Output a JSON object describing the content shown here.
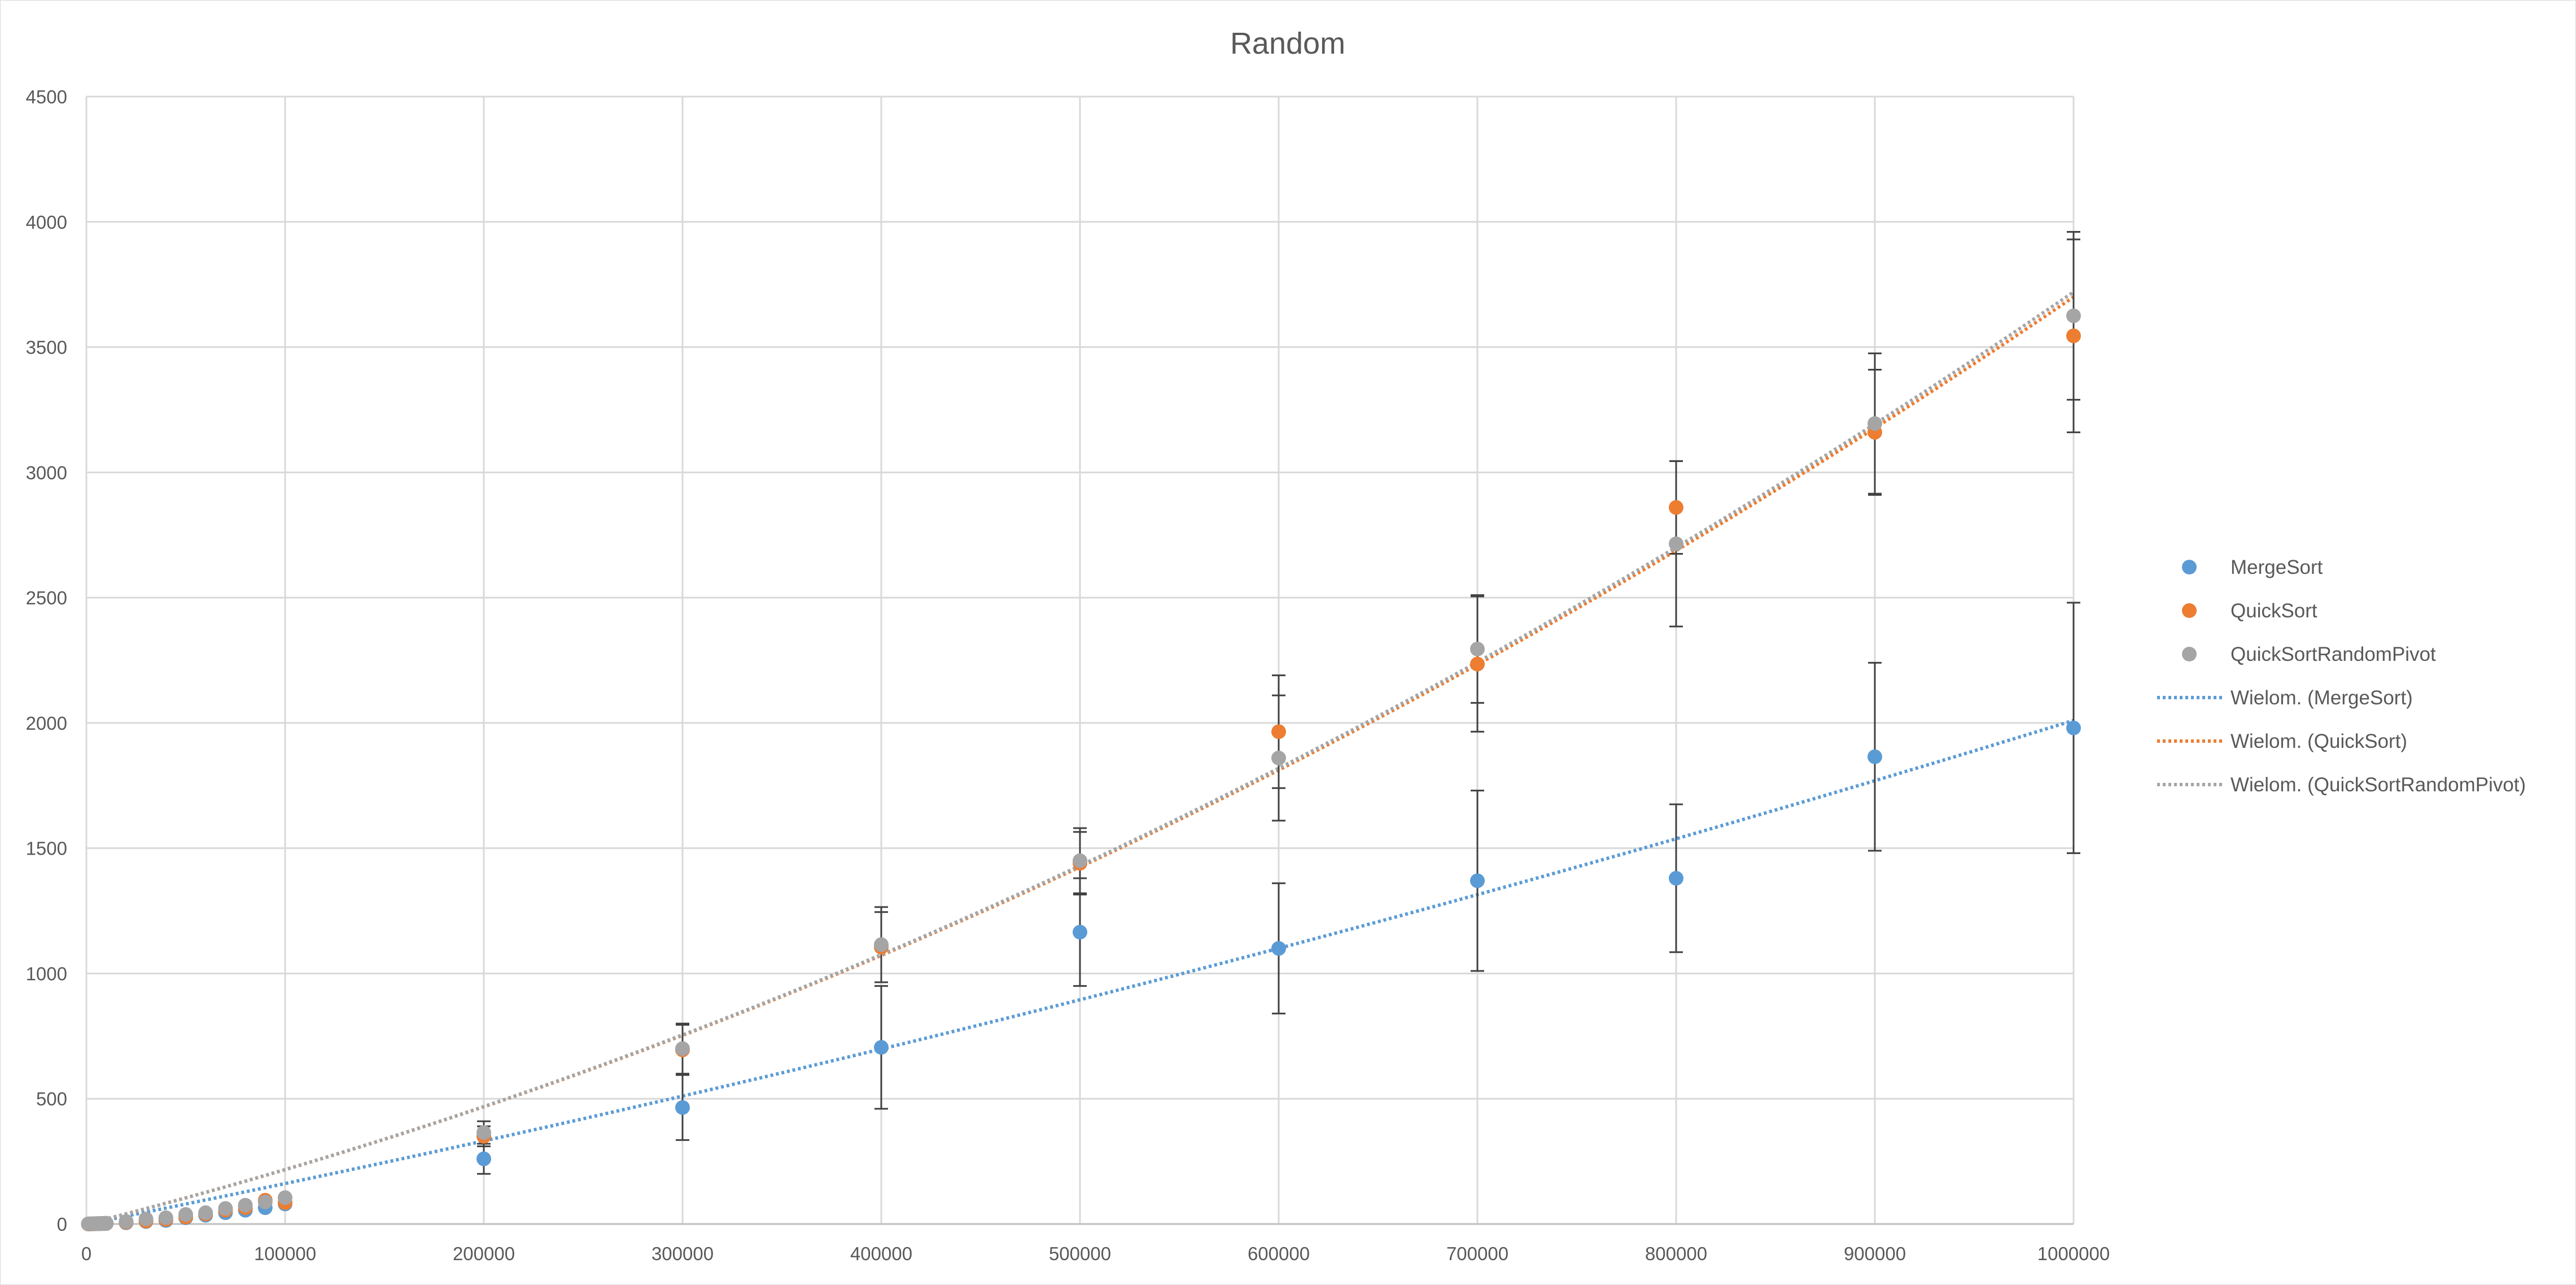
{
  "chart_data": {
    "type": "scatter",
    "title": "Random",
    "xlabel": "",
    "ylabel": "",
    "xlim": [
      0,
      1000000
    ],
    "ylim": [
      0,
      4500
    ],
    "x_ticks": [
      0,
      100000,
      200000,
      300000,
      400000,
      500000,
      600000,
      700000,
      800000,
      900000,
      1000000
    ],
    "y_ticks": [
      0,
      500,
      1000,
      1500,
      2000,
      2500,
      3000,
      3500,
      4000,
      4500
    ],
    "grid": true,
    "legend_position": "right",
    "series": [
      {
        "name": "MergeSort",
        "color": "#5b9bd5",
        "points": [
          {
            "x": 1000,
            "y": 0
          },
          {
            "x": 2000,
            "y": 0.3
          },
          {
            "x": 3000,
            "y": 0.5
          },
          {
            "x": 4000,
            "y": 0.7
          },
          {
            "x": 5000,
            "y": 1
          },
          {
            "x": 6000,
            "y": 1.2
          },
          {
            "x": 7000,
            "y": 1.4
          },
          {
            "x": 8000,
            "y": 1.6
          },
          {
            "x": 9000,
            "y": 1.8
          },
          {
            "x": 10000,
            "y": 2
          },
          {
            "x": 20000,
            "y": 5
          },
          {
            "x": 30000,
            "y": 10
          },
          {
            "x": 40000,
            "y": 14
          },
          {
            "x": 50000,
            "y": 25
          },
          {
            "x": 60000,
            "y": 35
          },
          {
            "x": 70000,
            "y": 45
          },
          {
            "x": 80000,
            "y": 55
          },
          {
            "x": 90000,
            "y": 65
          },
          {
            "x": 100000,
            "y": 80
          },
          {
            "x": 200000,
            "y": 260,
            "err": 60
          },
          {
            "x": 300000,
            "y": 465,
            "err": 130
          },
          {
            "x": 400000,
            "y": 705,
            "err": 245
          },
          {
            "x": 500000,
            "y": 1165,
            "err": 215
          },
          {
            "x": 600000,
            "y": 1100,
            "err": 260
          },
          {
            "x": 700000,
            "y": 1370,
            "err": 360
          },
          {
            "x": 800000,
            "y": 1380,
            "err": 295
          },
          {
            "x": 900000,
            "y": 1865,
            "err": 375
          },
          {
            "x": 1000000,
            "y": 1980,
            "err": 500
          }
        ]
      },
      {
        "name": "QuickSort",
        "color": "#ed7d31",
        "points": [
          {
            "x": 1000,
            "y": 0
          },
          {
            "x": 2000,
            "y": 0.3
          },
          {
            "x": 3000,
            "y": 0.6
          },
          {
            "x": 4000,
            "y": 0.9
          },
          {
            "x": 5000,
            "y": 1.2
          },
          {
            "x": 6000,
            "y": 1.5
          },
          {
            "x": 7000,
            "y": 1.8
          },
          {
            "x": 8000,
            "y": 2.1
          },
          {
            "x": 9000,
            "y": 2.4
          },
          {
            "x": 10000,
            "y": 2.8
          },
          {
            "x": 20000,
            "y": 7
          },
          {
            "x": 30000,
            "y": 12
          },
          {
            "x": 40000,
            "y": 18
          },
          {
            "x": 50000,
            "y": 28
          },
          {
            "x": 60000,
            "y": 40
          },
          {
            "x": 70000,
            "y": 55
          },
          {
            "x": 80000,
            "y": 65
          },
          {
            "x": 90000,
            "y": 95
          },
          {
            "x": 100000,
            "y": 85
          },
          {
            "x": 200000,
            "y": 350,
            "err": 40
          },
          {
            "x": 300000,
            "y": 695,
            "err": 100
          },
          {
            "x": 400000,
            "y": 1105,
            "err": 140
          },
          {
            "x": 500000,
            "y": 1440,
            "err": 125
          },
          {
            "x": 600000,
            "y": 1965,
            "err": 225
          },
          {
            "x": 700000,
            "y": 2235,
            "err": 270
          },
          {
            "x": 800000,
            "y": 2860,
            "err": 185
          },
          {
            "x": 900000,
            "y": 3160,
            "err": 250
          },
          {
            "x": 1000000,
            "y": 3545,
            "err": 385
          }
        ]
      },
      {
        "name": "QuickSortRandomPivot",
        "color": "#a5a5a5",
        "points": [
          {
            "x": 1000,
            "y": 0.5
          },
          {
            "x": 2000,
            "y": 0.8
          },
          {
            "x": 3000,
            "y": 1.1
          },
          {
            "x": 4000,
            "y": 1.4
          },
          {
            "x": 5000,
            "y": 1.7
          },
          {
            "x": 6000,
            "y": 2
          },
          {
            "x": 7000,
            "y": 2.3
          },
          {
            "x": 8000,
            "y": 2.6
          },
          {
            "x": 9000,
            "y": 2.9
          },
          {
            "x": 10000,
            "y": 3.2
          },
          {
            "x": 20000,
            "y": 10
          },
          {
            "x": 30000,
            "y": 20
          },
          {
            "x": 40000,
            "y": 25
          },
          {
            "x": 50000,
            "y": 38
          },
          {
            "x": 60000,
            "y": 45
          },
          {
            "x": 70000,
            "y": 62
          },
          {
            "x": 80000,
            "y": 75
          },
          {
            "x": 90000,
            "y": 88
          },
          {
            "x": 100000,
            "y": 105
          },
          {
            "x": 200000,
            "y": 365,
            "err": 45
          },
          {
            "x": 300000,
            "y": 700,
            "err": 100
          },
          {
            "x": 400000,
            "y": 1115,
            "err": 150
          },
          {
            "x": 500000,
            "y": 1450,
            "err": 130
          },
          {
            "x": 600000,
            "y": 1860,
            "err": 250
          },
          {
            "x": 700000,
            "y": 2295,
            "err": 215
          },
          {
            "x": 800000,
            "y": 2715,
            "err": 330
          },
          {
            "x": 900000,
            "y": 3195,
            "err": 280
          },
          {
            "x": 1000000,
            "y": 3625,
            "err": 335
          }
        ]
      }
    ],
    "trendlines": [
      {
        "name": "Wielom. (MergeSort)",
        "color": "#5b9bd5",
        "type": "polynomial",
        "coefficients": [
          0,
          0.00157,
          4.4e-10
        ]
      },
      {
        "name": "Wielom. (QuickSort)",
        "color": "#ed7d31",
        "type": "polynomial",
        "coefficients": [
          0,
          0.002,
          1.7e-09
        ]
      },
      {
        "name": "Wielom. (QuickSortRandomPivot)",
        "color": "#a5a5a5",
        "type": "polynomial",
        "coefficients": [
          0,
          0.002,
          1.72e-09
        ]
      }
    ]
  }
}
